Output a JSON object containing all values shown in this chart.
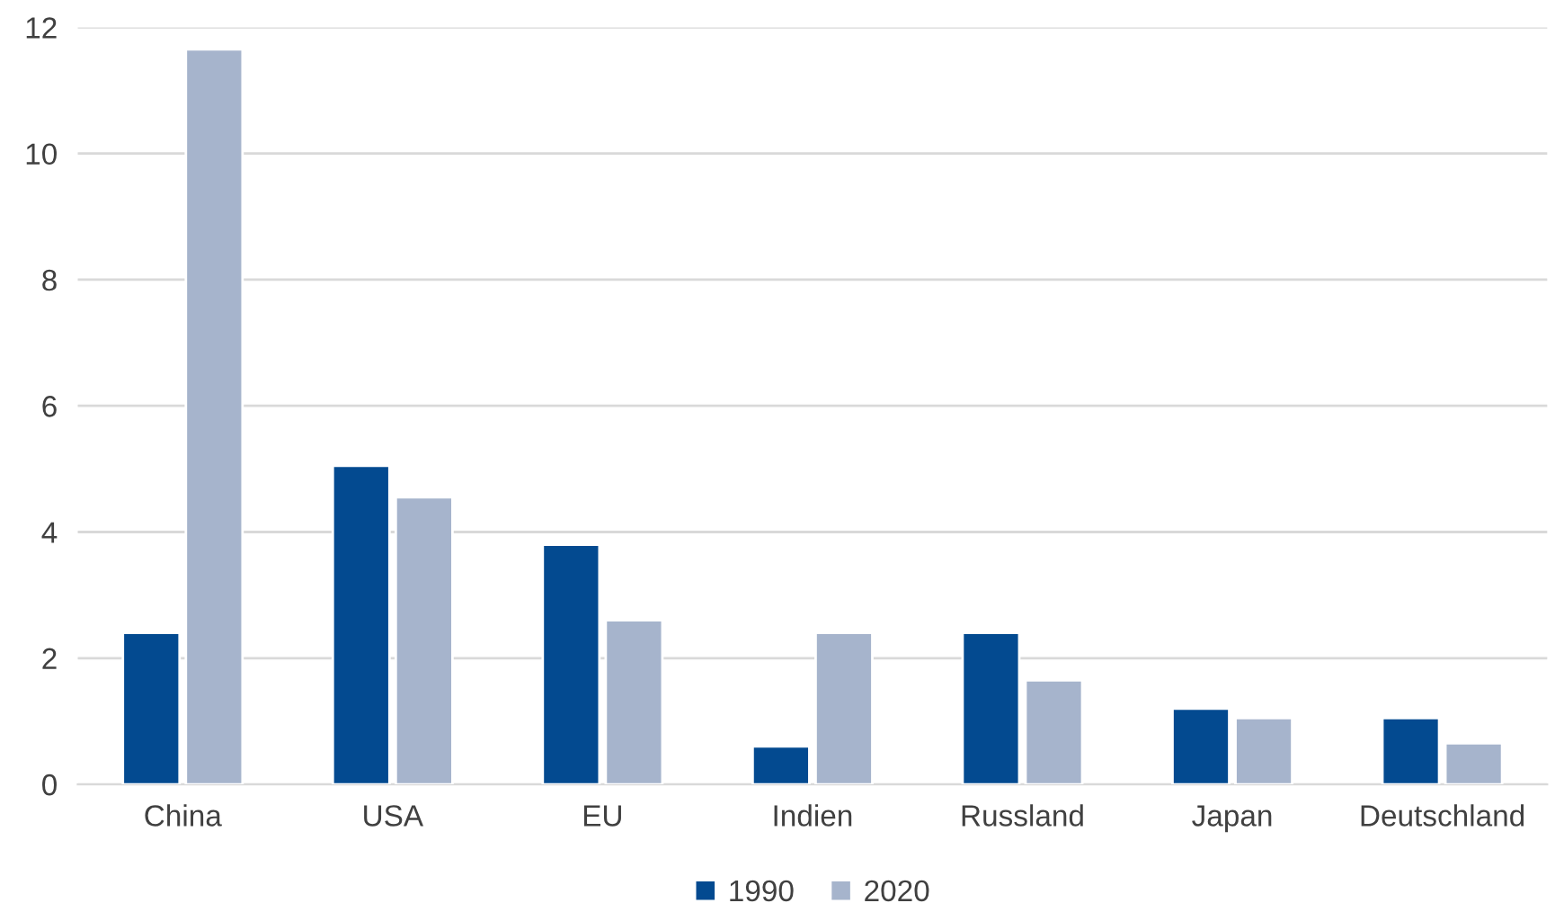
{
  "chart_data": {
    "type": "bar",
    "categories": [
      "China",
      "USA",
      "EU",
      "Indien",
      "Russland",
      "Japan",
      "Deutschland"
    ],
    "series": [
      {
        "name": "1990",
        "color": "#034a90",
        "values": [
          2.4,
          5.05,
          3.8,
          0.6,
          2.4,
          1.2,
          1.05
        ]
      },
      {
        "name": "2020",
        "color": "#a6b4cc",
        "values": [
          11.65,
          4.55,
          2.6,
          2.4,
          1.65,
          1.05,
          0.65
        ]
      }
    ],
    "ylim": [
      0,
      12
    ],
    "yticks": [
      0,
      2,
      4,
      6,
      8,
      10,
      12
    ],
    "grid": "y",
    "legend": "bottom"
  }
}
